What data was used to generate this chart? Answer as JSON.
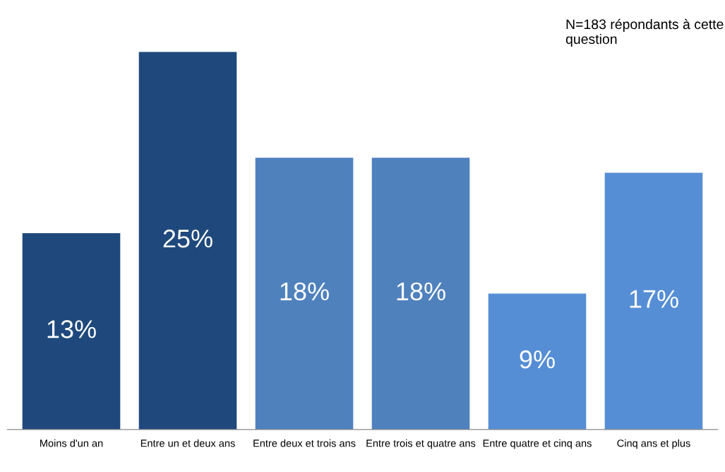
{
  "chart_data": {
    "type": "bar",
    "categories": [
      "Moins d'un an",
      "Entre un et deux ans",
      "Entre deux et trois ans",
      "Entre trois et quatre ans",
      "Entre quatre et cinq ans",
      "Cinq ans et plus"
    ],
    "values": [
      13,
      25,
      18,
      18,
      9,
      17
    ],
    "value_labels": [
      "13%",
      "25%",
      "18%",
      "18%",
      "9%",
      "17%"
    ],
    "colors": [
      "#1f497d",
      "#1f497d",
      "#4f81bd",
      "#4f81bd",
      "#558ed5",
      "#558ed5"
    ],
    "annotations": [
      "N=183 répondants à cette question"
    ],
    "grid": false,
    "legend": false,
    "tick_labels": "x"
  }
}
